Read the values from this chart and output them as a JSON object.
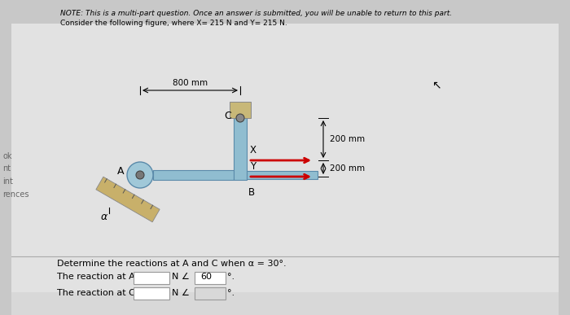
{
  "note_line1": "NOTE: This is a multi-part question. Once an answer is submitted, you will be unable to return to this part.",
  "note_line2": "Consider the following figure, where X= 215 N and Y= 215 N.",
  "bg_top": "#e0e0e0",
  "bg_bot": "#d8d8d8",
  "text_bottom1": "Determine the reactions at A and C when α = 30°.",
  "text_bottom2": "The reaction at A =",
  "text_bottom3": "The reaction at C =",
  "label_N_A": "N ∠",
  "label_N_C": "N ∠",
  "angle_A_val": "60",
  "dim_800": "800 mm",
  "dim_200_top": "200 mm",
  "dim_200_bot": "200 mm",
  "label_A": "A",
  "label_B": "B",
  "label_C": "C",
  "label_X": "X",
  "label_Y": "Y",
  "label_alpha": "α",
  "arrow_color": "#cc0000",
  "bar_color": "#90bdd0",
  "bar_edge": "#5a8aaa",
  "wall_color": "#c8b06a",
  "pivot_color": "#a0c8d8",
  "pivot_inner": "#777777"
}
